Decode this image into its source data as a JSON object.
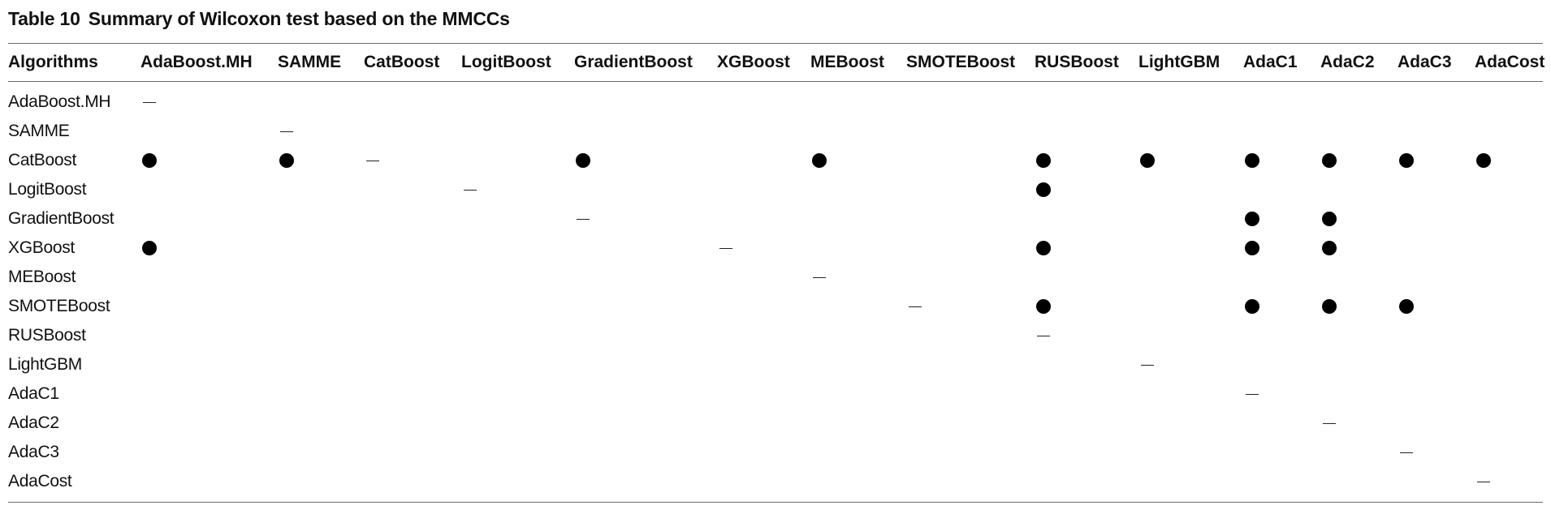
{
  "table": {
    "number": "Table 10",
    "title": "Summary of Wilcoxon test based on the MMCCs",
    "corner_header": "Algorithms",
    "columns": [
      "AdaBoost.MH",
      "SAMME",
      "CatBoost",
      "LogitBoost",
      "GradientBoost",
      "XGBoost",
      "MEBoost",
      "SMOTEBoost",
      "RUSBoost",
      "LightGBM",
      "AdaC1",
      "AdaC2",
      "AdaC3",
      "AdaCost"
    ],
    "rows": [
      {
        "label": "AdaBoost.MH",
        "cells": [
          "–",
          "",
          "",
          "",
          "",
          "",
          "",
          "",
          "",
          "",
          "",
          "",
          "",
          ""
        ]
      },
      {
        "label": "SAMME",
        "cells": [
          "",
          "–",
          "",
          "",
          "",
          "",
          "",
          "",
          "",
          "",
          "",
          "",
          "",
          ""
        ]
      },
      {
        "label": "CatBoost",
        "cells": [
          "●",
          "●",
          "–",
          "",
          "●",
          "",
          "●",
          "",
          "●",
          "●",
          "●",
          "●",
          "●",
          "●"
        ]
      },
      {
        "label": "LogitBoost",
        "cells": [
          "",
          "",
          "",
          "–",
          "",
          "",
          "",
          "",
          "●",
          "",
          "",
          "",
          "",
          ""
        ]
      },
      {
        "label": "GradientBoost",
        "cells": [
          "",
          "",
          "",
          "",
          "–",
          "",
          "",
          "",
          "",
          "",
          "●",
          "●",
          "",
          ""
        ]
      },
      {
        "label": "XGBoost",
        "cells": [
          "●",
          "",
          "",
          "",
          "",
          "–",
          "",
          "",
          "●",
          "",
          "●",
          "●",
          "",
          ""
        ]
      },
      {
        "label": "MEBoost",
        "cells": [
          "",
          "",
          "",
          "",
          "",
          "",
          "–",
          "",
          "",
          "",
          "",
          "",
          "",
          ""
        ]
      },
      {
        "label": "SMOTEBoost",
        "cells": [
          "",
          "",
          "",
          "",
          "",
          "",
          "",
          "–",
          "●",
          "",
          "●",
          "●",
          "●",
          ""
        ]
      },
      {
        "label": "RUSBoost",
        "cells": [
          "",
          "",
          "",
          "",
          "",
          "",
          "",
          "",
          "–",
          "",
          "",
          "",
          "",
          ""
        ]
      },
      {
        "label": "LightGBM",
        "cells": [
          "",
          "",
          "",
          "",
          "",
          "",
          "",
          "",
          "",
          "–",
          "",
          "",
          "",
          ""
        ]
      },
      {
        "label": "AdaC1",
        "cells": [
          "",
          "",
          "",
          "",
          "",
          "",
          "",
          "",
          "",
          "",
          "–",
          "",
          "",
          ""
        ]
      },
      {
        "label": "AdaC2",
        "cells": [
          "",
          "",
          "",
          "",
          "",
          "",
          "",
          "",
          "",
          "",
          "",
          "–",
          "",
          ""
        ]
      },
      {
        "label": "AdaC3",
        "cells": [
          "",
          "",
          "",
          "",
          "",
          "",
          "",
          "",
          "",
          "",
          "",
          "",
          "–",
          ""
        ]
      },
      {
        "label": "AdaCost",
        "cells": [
          "",
          "",
          "",
          "",
          "",
          "",
          "",
          "",
          "",
          "",
          "",
          "",
          "",
          "–"
        ]
      }
    ]
  }
}
